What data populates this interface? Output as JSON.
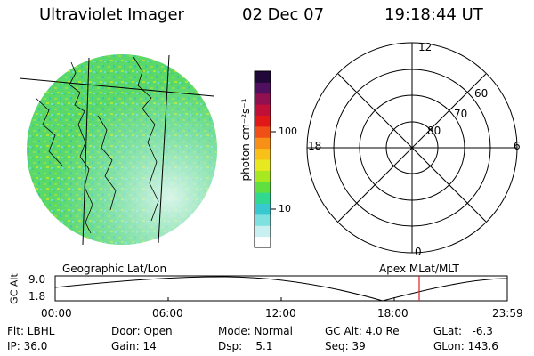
{
  "header": {
    "instrument": "Ultraviolet Imager",
    "date": "02 Dec 07",
    "time": "19:18:44 UT"
  },
  "colorbar": {
    "label": "photon cm⁻²s⁻¹",
    "ticks": [
      "100",
      "10"
    ],
    "colors": [
      "#ffffff",
      "#c8f0f0",
      "#7fe0e0",
      "#38c8d0",
      "#30d890",
      "#60e040",
      "#a8e820",
      "#e8e820",
      "#f8c018",
      "#f89018",
      "#f05018",
      "#e01818",
      "#c01038",
      "#901050",
      "#501060",
      "#200838"
    ]
  },
  "geo_map": {
    "caption": "Geographic Lat/Lon"
  },
  "polar_plot": {
    "caption": "Apex MLat/MLT",
    "mlt_labels": {
      "top": "12",
      "right": "6",
      "bottom": "0",
      "left": "18"
    },
    "lat_labels": [
      "80",
      "70",
      "60"
    ]
  },
  "altitude_plot": {
    "ylabel": "GC Alt",
    "ymax_label": "9.0",
    "ymin_label": "1.8",
    "time_ticks": [
      "00:00",
      "06:00",
      "12:00",
      "18:00",
      "23:59"
    ],
    "marker_color": "#e02020"
  },
  "info": {
    "flt": "Flt: LBHL",
    "ip": "IP: 36.0",
    "door": "Door: Open",
    "gain": "Gain: 14",
    "mode": "Mode: Normal",
    "dsp": "Dsp:    5.1",
    "gc_alt": "GC Alt: 4.0 Re",
    "seq": "Seq: 39",
    "glat": "GLat:   -6.3",
    "glon": "GLon: 143.6"
  }
}
